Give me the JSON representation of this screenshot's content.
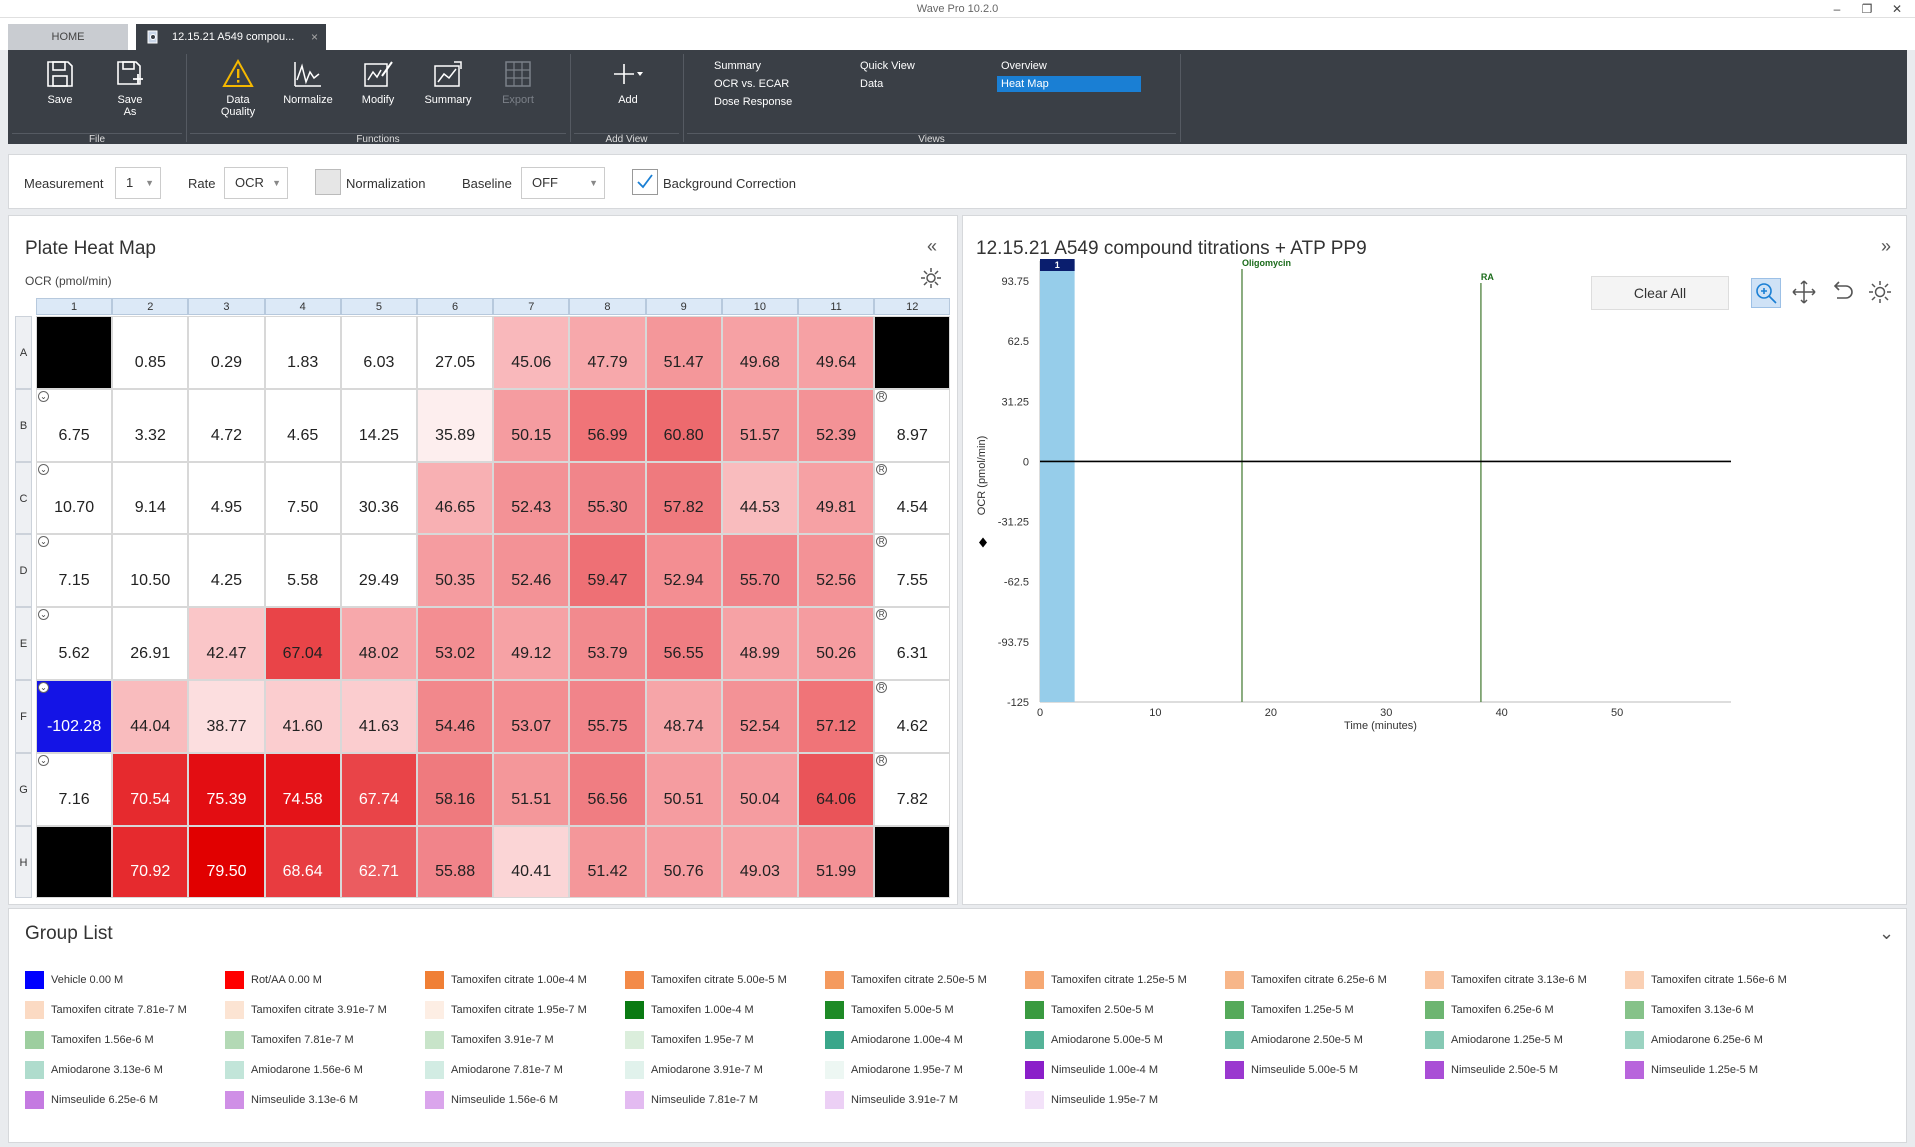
{
  "window": {
    "title": "Wave Pro 10.2.0",
    "minimize": "–",
    "restore": "❐",
    "close": "✕"
  },
  "tabs": {
    "home": "HOME",
    "doc": "12.15.21 A549 compou...",
    "doc_close": "×"
  },
  "ribbon": {
    "file_label": "File",
    "functions_label": "Functions",
    "addview_label": "Add View",
    "views_label": "Views",
    "buttons": {
      "save": "Save",
      "save_as_1": "Save",
      "save_as_2": "As",
      "data_quality_1": "Data",
      "data_quality_2": "Quality",
      "normalize": "Normalize",
      "modify": "Modify",
      "summary": "Summary",
      "export": "Export",
      "add": "Add"
    },
    "views": {
      "summary": "Summary",
      "ocr_ecar": "OCR vs. ECAR",
      "dose_response": "Dose Response",
      "quick_view": "Quick View",
      "data": "Data",
      "overview": "Overview",
      "heat_map": "Heat Map"
    }
  },
  "toolbar": {
    "measurement_label": "Measurement",
    "measurement_value": "1",
    "rate_label": "Rate",
    "rate_value": "OCR",
    "normalization_label": "Normalization",
    "baseline_label": "Baseline",
    "baseline_value": "OFF",
    "bg_correction_label": "Background Correction",
    "bg_correction_checked": true
  },
  "heatmap": {
    "title": "Plate Heat Map",
    "unit": "OCR (pmol/min)",
    "collapse": "«",
    "columns": [
      "1",
      "2",
      "3",
      "4",
      "5",
      "6",
      "7",
      "8",
      "9",
      "10",
      "11",
      "12"
    ],
    "rows": [
      {
        "label": "A",
        "cells": [
          {
            "v": "",
            "c": "#000000"
          },
          {
            "v": "0.85",
            "c": "#ffffff"
          },
          {
            "v": "0.29",
            "c": "#ffffff"
          },
          {
            "v": "1.83",
            "c": "#ffffff"
          },
          {
            "v": "6.03",
            "c": "#ffffff"
          },
          {
            "v": "27.05",
            "c": "#ffffff"
          },
          {
            "v": "45.06",
            "c": "#f9b8bb"
          },
          {
            "v": "47.79",
            "c": "#f7a8ab"
          },
          {
            "v": "51.47",
            "c": "#f4979a"
          },
          {
            "v": "49.68",
            "c": "#f6a1a4"
          },
          {
            "v": "49.64",
            "c": "#f6a1a4"
          },
          {
            "v": "",
            "c": "#000000"
          }
        ]
      },
      {
        "label": "B",
        "cells": [
          {
            "v": "6.75",
            "c": "#ffffff",
            "m": "v"
          },
          {
            "v": "3.32",
            "c": "#ffffff"
          },
          {
            "v": "4.72",
            "c": "#ffffff"
          },
          {
            "v": "4.65",
            "c": "#ffffff"
          },
          {
            "v": "14.25",
            "c": "#ffffff"
          },
          {
            "v": "35.89",
            "c": "#fdeeee"
          },
          {
            "v": "50.15",
            "c": "#f59ca0"
          },
          {
            "v": "56.99",
            "c": "#f07478"
          },
          {
            "v": "60.80",
            "c": "#ed6a6e"
          },
          {
            "v": "51.57",
            "c": "#f4979a"
          },
          {
            "v": "52.39",
            "c": "#f39296"
          },
          {
            "v": "8.97",
            "c": "#ffffff",
            "m": "r"
          }
        ]
      },
      {
        "label": "C",
        "cells": [
          {
            "v": "10.70",
            "c": "#ffffff",
            "m": "v"
          },
          {
            "v": "9.14",
            "c": "#ffffff"
          },
          {
            "v": "4.95",
            "c": "#ffffff"
          },
          {
            "v": "7.50",
            "c": "#ffffff"
          },
          {
            "v": "30.36",
            "c": "#ffffff"
          },
          {
            "v": "46.65",
            "c": "#f8b0b3"
          },
          {
            "v": "52.43",
            "c": "#f39296"
          },
          {
            "v": "55.30",
            "c": "#f1858a"
          },
          {
            "v": "57.82",
            "c": "#ef7a7e"
          },
          {
            "v": "44.53",
            "c": "#f9bcbe"
          },
          {
            "v": "49.81",
            "c": "#f6a1a4"
          },
          {
            "v": "4.54",
            "c": "#ffffff",
            "m": "r"
          }
        ]
      },
      {
        "label": "D",
        "cells": [
          {
            "v": "7.15",
            "c": "#ffffff",
            "m": "v"
          },
          {
            "v": "10.50",
            "c": "#ffffff"
          },
          {
            "v": "4.25",
            "c": "#ffffff"
          },
          {
            "v": "5.58",
            "c": "#ffffff"
          },
          {
            "v": "29.49",
            "c": "#ffffff"
          },
          {
            "v": "50.35",
            "c": "#f59ca0"
          },
          {
            "v": "52.46",
            "c": "#f39296"
          },
          {
            "v": "59.47",
            "c": "#ee7075"
          },
          {
            "v": "52.94",
            "c": "#f38e92"
          },
          {
            "v": "55.70",
            "c": "#f1848a"
          },
          {
            "v": "52.56",
            "c": "#f39296"
          },
          {
            "v": "7.55",
            "c": "#ffffff",
            "m": "r"
          }
        ]
      },
      {
        "label": "E",
        "cells": [
          {
            "v": "5.62",
            "c": "#ffffff",
            "m": "v"
          },
          {
            "v": "26.91",
            "c": "#ffffff"
          },
          {
            "v": "42.47",
            "c": "#fac6c8"
          },
          {
            "v": "67.04",
            "c": "#e94448"
          },
          {
            "v": "48.02",
            "c": "#f7a8ab"
          },
          {
            "v": "53.02",
            "c": "#f38e92"
          },
          {
            "v": "49.12",
            "c": "#f6a2a5"
          },
          {
            "v": "53.79",
            "c": "#f28a8e"
          },
          {
            "v": "56.55",
            "c": "#f07d82"
          },
          {
            "v": "48.99",
            "c": "#f6a2a5"
          },
          {
            "v": "50.26",
            "c": "#f59ca0"
          },
          {
            "v": "6.31",
            "c": "#ffffff",
            "m": "r"
          }
        ]
      },
      {
        "label": "F",
        "cells": [
          {
            "v": "-102.28",
            "c": "#1414e6",
            "m": "v",
            "light": true
          },
          {
            "v": "44.04",
            "c": "#f9bcbe"
          },
          {
            "v": "38.77",
            "c": "#fcdedf"
          },
          {
            "v": "41.60",
            "c": "#fbcdcf"
          },
          {
            "v": "41.63",
            "c": "#fbcdcf"
          },
          {
            "v": "54.46",
            "c": "#f2888c"
          },
          {
            "v": "53.07",
            "c": "#f38e92"
          },
          {
            "v": "55.75",
            "c": "#f1848a"
          },
          {
            "v": "48.74",
            "c": "#f6a5a8"
          },
          {
            "v": "52.54",
            "c": "#f39296"
          },
          {
            "v": "57.12",
            "c": "#f07478"
          },
          {
            "v": "4.62",
            "c": "#ffffff",
            "m": "r"
          }
        ]
      },
      {
        "label": "G",
        "cells": [
          {
            "v": "7.16",
            "c": "#ffffff",
            "m": "v"
          },
          {
            "v": "70.54",
            "c": "#e62a2e",
            "light": true
          },
          {
            "v": "75.39",
            "c": "#e30d12",
            "light": true
          },
          {
            "v": "74.58",
            "c": "#e41318",
            "light": true
          },
          {
            "v": "67.74",
            "c": "#e94448",
            "light": true
          },
          {
            "v": "58.16",
            "c": "#ef7a7e"
          },
          {
            "v": "51.51",
            "c": "#f4979a"
          },
          {
            "v": "56.56",
            "c": "#f07d82"
          },
          {
            "v": "50.51",
            "c": "#f59ca0"
          },
          {
            "v": "50.04",
            "c": "#f59ca0"
          },
          {
            "v": "64.06",
            "c": "#ea5459"
          },
          {
            "v": "7.82",
            "c": "#ffffff",
            "m": "r"
          }
        ]
      },
      {
        "label": "H",
        "cells": [
          {
            "v": "",
            "c": "#000000"
          },
          {
            "v": "70.92",
            "c": "#e62a2e",
            "light": true
          },
          {
            "v": "79.50",
            "c": "#e10000",
            "light": true
          },
          {
            "v": "68.64",
            "c": "#e83c40",
            "light": true
          },
          {
            "v": "62.71",
            "c": "#eb5c60",
            "light": true
          },
          {
            "v": "55.88",
            "c": "#f1848a"
          },
          {
            "v": "40.41",
            "c": "#fbd5d6"
          },
          {
            "v": "51.42",
            "c": "#f4979a"
          },
          {
            "v": "50.76",
            "c": "#f59ca0"
          },
          {
            "v": "49.03",
            "c": "#f6a2a5"
          },
          {
            "v": "51.99",
            "c": "#f39296"
          },
          {
            "v": "",
            "c": "#000000"
          }
        ]
      }
    ]
  },
  "chart_panel": {
    "title": "12.15.21 A549 compound titrations + ATP PP9",
    "expand": "»",
    "clear_all": "Clear All"
  },
  "chart_data": {
    "type": "line",
    "xlabel": "Time (minutes)",
    "ylabel": "OCR (pmol/min)",
    "xlim": [
      0,
      59
    ],
    "ylim": [
      -125,
      100
    ],
    "x_ticks": [
      "0",
      "10",
      "20",
      "30",
      "40",
      "50"
    ],
    "y_ticks": [
      "93.75",
      "62.5",
      "31.25",
      "0",
      "-31.25",
      "-62.5",
      "-93.75",
      "-125"
    ],
    "measurement_marker": {
      "label": "1",
      "x_start": 0,
      "x_end": 3
    },
    "injections": [
      {
        "label": "Oligomycin",
        "x": 17.5
      },
      {
        "label": "RA",
        "x": 38.2
      }
    ],
    "series": []
  },
  "group_list": {
    "title": "Group List",
    "collapse": "⌄",
    "groups": [
      {
        "name": "Vehicle 0.00 M",
        "color": "#0000ff"
      },
      {
        "name": "Rot/AA 0.00 M",
        "color": "#ff0000"
      },
      {
        "name": "Tamoxifen citrate 1.00e-4 M",
        "color": "#f07f35"
      },
      {
        "name": "Tamoxifen citrate 5.00e-5 M",
        "color": "#f38a48"
      },
      {
        "name": "Tamoxifen citrate 2.50e-5 M",
        "color": "#f49a5e"
      },
      {
        "name": "Tamoxifen citrate 1.25e-5 M",
        "color": "#f6a873"
      },
      {
        "name": "Tamoxifen citrate 6.25e-6 M",
        "color": "#f7b689"
      },
      {
        "name": "Tamoxifen citrate 3.13e-6 M",
        "color": "#f9c4a0"
      },
      {
        "name": "Tamoxifen citrate 1.56e-6 M",
        "color": "#fad0b4"
      },
      {
        "name": "Tamoxifen citrate 7.81e-7 M",
        "color": "#fbdac3"
      },
      {
        "name": "Tamoxifen citrate 3.91e-7 M",
        "color": "#fce4d3"
      },
      {
        "name": "Tamoxifen citrate 1.95e-7 M",
        "color": "#fdeee4"
      },
      {
        "name": "Tamoxifen 1.00e-4 M",
        "color": "#0a7a12"
      },
      {
        "name": "Tamoxifen 5.00e-5 M",
        "color": "#1e8a26"
      },
      {
        "name": "Tamoxifen 2.50e-5 M",
        "color": "#3a9a40"
      },
      {
        "name": "Tamoxifen 1.25e-5 M",
        "color": "#55a95a"
      },
      {
        "name": "Tamoxifen 6.25e-6 M",
        "color": "#6db571"
      },
      {
        "name": "Tamoxifen 3.13e-6 M",
        "color": "#86c289"
      },
      {
        "name": "Tamoxifen 1.56e-6 M",
        "color": "#9dce9f"
      },
      {
        "name": "Tamoxifen 7.81e-7 M",
        "color": "#b3d9b5"
      },
      {
        "name": "Tamoxifen 3.91e-7 M",
        "color": "#c8e4c9"
      },
      {
        "name": "Tamoxifen 1.95e-7 M",
        "color": "#dbeedc"
      },
      {
        "name": "Amiodarone 1.00e-4 M",
        "color": "#3aa68a"
      },
      {
        "name": "Amiodarone 5.00e-5 M",
        "color": "#55b398"
      },
      {
        "name": "Amiodarone 2.50e-5 M",
        "color": "#6dbea6"
      },
      {
        "name": "Amiodarone 1.25e-5 M",
        "color": "#86c9b4"
      },
      {
        "name": "Amiodarone 6.25e-6 M",
        "color": "#9bd3c1"
      },
      {
        "name": "Amiodarone 3.13e-6 M",
        "color": "#afdccd"
      },
      {
        "name": "Amiodarone 1.56e-6 M",
        "color": "#c2e5d9"
      },
      {
        "name": "Amiodarone 7.81e-7 M",
        "color": "#d2ece3"
      },
      {
        "name": "Amiodarone 3.91e-7 M",
        "color": "#e1f2ec"
      },
      {
        "name": "Amiodarone 1.95e-7 M",
        "color": "#edf7f3"
      },
      {
        "name": "Nimseulide 1.00e-4 M",
        "color": "#8a1fc9"
      },
      {
        "name": "Nimseulide 5.00e-5 M",
        "color": "#9a38cf"
      },
      {
        "name": "Nimseulide 2.50e-5 M",
        "color": "#a94ed6"
      },
      {
        "name": "Nimseulide 1.25e-5 M",
        "color": "#b865dc"
      },
      {
        "name": "Nimseulide 6.25e-6 M",
        "color": "#c47ae1"
      },
      {
        "name": "Nimseulide 3.13e-6 M",
        "color": "#cf8fe6"
      },
      {
        "name": "Nimseulide 1.56e-6 M",
        "color": "#daa5ec"
      },
      {
        "name": "Nimseulide 7.81e-7 M",
        "color": "#e3bbf1"
      },
      {
        "name": "Nimseulide 3.91e-7 M",
        "color": "#ecd0f5"
      },
      {
        "name": "Nimseulide 1.95e-7 M",
        "color": "#f3e2f9"
      }
    ]
  }
}
